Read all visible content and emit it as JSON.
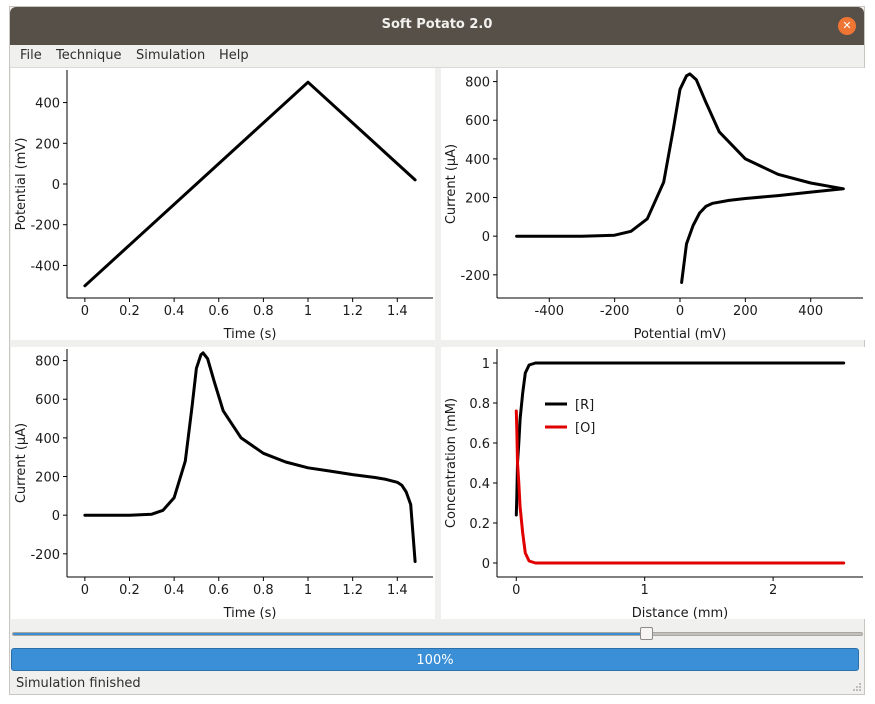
{
  "window": {
    "title": "Soft Potato 2.0",
    "close_symbol": "✕"
  },
  "menu": [
    "File",
    "Technique",
    "Simulation",
    "Help"
  ],
  "colors": {
    "accent": "#3b8fd6",
    "titlebar": "#575049",
    "close": "#ee7533",
    "reduced": "#000000",
    "oxidized": "#e00000"
  },
  "plots": {
    "waveform": {
      "type": "line",
      "xlabel": "Time (s)",
      "ylabel": "Potential (mV)",
      "xticks": [
        "0",
        "0.2",
        "0.4",
        "0.6",
        "0.8",
        "1",
        "1.2",
        "1.4"
      ],
      "yticks": [
        "400",
        "200",
        "0",
        "-200",
        "-400"
      ],
      "xlim": [
        -0.08,
        1.56
      ],
      "ylim": [
        -560,
        560
      ]
    },
    "cv": {
      "type": "line",
      "xlabel": "Potential (mV)",
      "ylabel": "Current (µA)",
      "xticks": [
        "-400",
        "-200",
        "0",
        "200",
        "400"
      ],
      "yticks": [
        "800",
        "600",
        "400",
        "200",
        "0",
        "-200"
      ],
      "xlim": [
        -560,
        560
      ],
      "ylim": [
        -320,
        860
      ]
    },
    "current_time": {
      "type": "line",
      "xlabel": "Time (s)",
      "ylabel": "Current (µA)",
      "xticks": [
        "0",
        "0.2",
        "0.4",
        "0.6",
        "0.8",
        "1",
        "1.2",
        "1.4"
      ],
      "yticks": [
        "800",
        "600",
        "400",
        "200",
        "0",
        "-200"
      ],
      "xlim": [
        -0.08,
        1.56
      ],
      "ylim": [
        -320,
        860
      ]
    },
    "concentration": {
      "type": "line",
      "xlabel": "Distance (mm)",
      "ylabel": "Concentration (mM)",
      "xticks": [
        "0",
        "1",
        "2"
      ],
      "yticks": [
        "1",
        "0.8",
        "0.6",
        "0.4",
        "0.2",
        "0"
      ],
      "xlim": [
        -0.15,
        2.7
      ],
      "ylim": [
        -0.07,
        1.07
      ],
      "legend": [
        "[R]",
        "[O]"
      ]
    }
  },
  "chart_data": [
    {
      "type": "line",
      "xlabel": "Time (s)",
      "ylabel": "Potential (mV)",
      "x": [
        0,
        1,
        1.48
      ],
      "y": [
        -500,
        500,
        20
      ]
    },
    {
      "type": "line",
      "xlabel": "Potential (mV)",
      "ylabel": "Current (µA)",
      "x": [
        -500,
        -300,
        -200,
        -150,
        -100,
        -50,
        -20,
        0,
        20,
        30,
        50,
        80,
        120,
        200,
        300,
        400,
        500,
        400,
        300,
        200,
        150,
        100,
        80,
        60,
        40,
        20,
        5
      ],
      "y": [
        0,
        0,
        5,
        25,
        90,
        280,
        560,
        760,
        830,
        840,
        810,
        690,
        540,
        400,
        320,
        275,
        245,
        228,
        210,
        195,
        185,
        170,
        155,
        120,
        55,
        -40,
        -240
      ]
    },
    {
      "type": "line",
      "xlabel": "Time (s)",
      "ylabel": "Current (µA)",
      "x": [
        0,
        0.2,
        0.3,
        0.35,
        0.4,
        0.45,
        0.48,
        0.5,
        0.52,
        0.53,
        0.55,
        0.58,
        0.62,
        0.7,
        0.8,
        0.9,
        1.0,
        1.1,
        1.2,
        1.3,
        1.35,
        1.4,
        1.42,
        1.44,
        1.46,
        1.48
      ],
      "y": [
        0,
        0,
        5,
        25,
        90,
        280,
        560,
        760,
        830,
        840,
        810,
        690,
        540,
        400,
        320,
        275,
        245,
        228,
        210,
        195,
        185,
        170,
        155,
        120,
        55,
        -240
      ]
    },
    {
      "type": "line",
      "xlabel": "Distance (mm)",
      "ylabel": "Concentration (mM)",
      "series": [
        {
          "name": "[R]",
          "x": [
            0,
            0.005,
            0.01,
            0.02,
            0.03,
            0.05,
            0.07,
            0.1,
            0.15,
            2.55
          ],
          "y": [
            0.24,
            0.35,
            0.5,
            0.6,
            0.72,
            0.85,
            0.95,
            0.99,
            1.0,
            1.0
          ]
        },
        {
          "name": "[O]",
          "x": [
            0,
            0.005,
            0.01,
            0.02,
            0.03,
            0.05,
            0.07,
            0.1,
            0.15,
            2.55
          ],
          "y": [
            0.76,
            0.65,
            0.5,
            0.4,
            0.28,
            0.15,
            0.05,
            0.01,
            0.0,
            0.0
          ]
        }
      ]
    }
  ],
  "slider": {
    "value_fraction": 0.745
  },
  "progress": {
    "percent": 100,
    "label": "100%"
  },
  "status": "Simulation finished"
}
